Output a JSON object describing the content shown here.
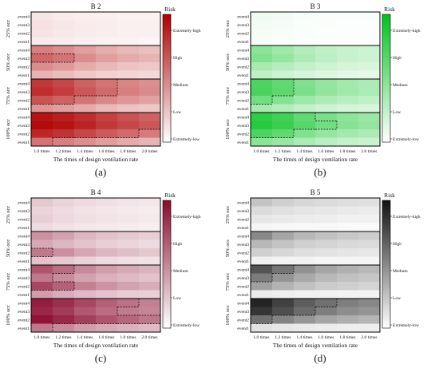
{
  "chart_data": [
    {
      "type": "heatmap",
      "title": "B 2",
      "panel_label": "(a)",
      "color": "#b00000",
      "xlabel": "The times of design ventilation rate",
      "x": [
        "1.0 times",
        "1.2 times",
        "1.4 times",
        "1.6 times",
        "1.8 times",
        "2.0 times"
      ],
      "groups": [
        "25% occ",
        "50% occ",
        "75% occ",
        "100% occ"
      ],
      "rows": [
        "event4",
        "event3",
        "event2",
        "event1"
      ],
      "legend_title": "Risk",
      "legend_labels": [
        "Extremely-high",
        "High",
        "Medium",
        "Low",
        "Extremely-low"
      ],
      "values": [
        [
          [
            0.1,
            0.08,
            0.07,
            0.06,
            0.05,
            0.05
          ],
          [
            0.12,
            0.1,
            0.08,
            0.07,
            0.06,
            0.06
          ],
          [
            0.11,
            0.09,
            0.08,
            0.07,
            0.06,
            0.06
          ],
          [
            0.08,
            0.07,
            0.06,
            0.05,
            0.05,
            0.04
          ]
        ],
        [
          [
            0.5,
            0.45,
            0.38,
            0.32,
            0.28,
            0.25
          ],
          [
            0.6,
            0.55,
            0.45,
            0.38,
            0.33,
            0.3
          ],
          [
            0.45,
            0.4,
            0.33,
            0.28,
            0.24,
            0.22
          ],
          [
            0.3,
            0.26,
            0.22,
            0.18,
            0.16,
            0.15
          ]
        ],
        [
          [
            0.78,
            0.72,
            0.62,
            0.55,
            0.48,
            0.44
          ],
          [
            0.82,
            0.76,
            0.66,
            0.58,
            0.5,
            0.46
          ],
          [
            0.68,
            0.62,
            0.54,
            0.47,
            0.41,
            0.37
          ],
          [
            0.42,
            0.38,
            0.33,
            0.28,
            0.24,
            0.22
          ]
        ],
        [
          [
            0.92,
            0.88,
            0.82,
            0.74,
            0.68,
            0.62
          ],
          [
            0.96,
            0.92,
            0.86,
            0.78,
            0.72,
            0.66
          ],
          [
            0.85,
            0.8,
            0.72,
            0.64,
            0.58,
            0.52
          ],
          [
            0.55,
            0.5,
            0.44,
            0.38,
            0.33,
            0.3
          ]
        ]
      ]
    },
    {
      "type": "heatmap",
      "title": "B 3",
      "panel_label": "(b)",
      "color": "#00c21c",
      "xlabel": "The times of design ventilation rate",
      "x": [
        "1.0 times",
        "1.2 times",
        "1.4 times",
        "1.6 times",
        "1.8 times",
        "2.0 times"
      ],
      "groups": [
        "25% occ",
        "50% occ",
        "75% occ",
        "100% occ"
      ],
      "rows": [
        "event4",
        "event3",
        "event2",
        "event1"
      ],
      "legend_title": "Risk",
      "legend_labels": [
        "Extremely-high",
        "High",
        "Medium",
        "Low",
        "Extremely-low"
      ],
      "values": [
        [
          [
            0.06,
            0.05,
            0.03,
            0.02,
            0.02,
            0.02
          ],
          [
            0.05,
            0.04,
            0.02,
            0.02,
            0.01,
            0.01
          ],
          [
            0.04,
            0.03,
            0.02,
            0.01,
            0.01,
            0.01
          ],
          [
            0.03,
            0.02,
            0.01,
            0.01,
            0.01,
            0.01
          ]
        ],
        [
          [
            0.45,
            0.38,
            0.3,
            0.25,
            0.22,
            0.2
          ],
          [
            0.5,
            0.42,
            0.32,
            0.26,
            0.22,
            0.2
          ],
          [
            0.35,
            0.3,
            0.24,
            0.2,
            0.17,
            0.15
          ],
          [
            0.25,
            0.2,
            0.16,
            0.13,
            0.11,
            0.1
          ]
        ],
        [
          [
            0.7,
            0.62,
            0.5,
            0.42,
            0.36,
            0.32
          ],
          [
            0.72,
            0.64,
            0.52,
            0.43,
            0.37,
            0.33
          ],
          [
            0.55,
            0.48,
            0.38,
            0.32,
            0.28,
            0.25
          ],
          [
            0.35,
            0.3,
            0.24,
            0.2,
            0.17,
            0.15
          ]
        ],
        [
          [
            0.82,
            0.75,
            0.62,
            0.52,
            0.45,
            0.4
          ],
          [
            0.86,
            0.78,
            0.66,
            0.55,
            0.47,
            0.42
          ],
          [
            0.7,
            0.62,
            0.5,
            0.42,
            0.36,
            0.32
          ],
          [
            0.45,
            0.4,
            0.32,
            0.27,
            0.23,
            0.21
          ]
        ]
      ]
    },
    {
      "type": "heatmap",
      "title": "B 4",
      "panel_label": "(c)",
      "color": "#8b0a2e",
      "xlabel": "The times of design ventilation rate",
      "x": [
        "1.0 times",
        "1.2 times",
        "1.4 times",
        "1.6 times",
        "1.8 times",
        "2.0 times"
      ],
      "groups": [
        "25% occ",
        "50% occ",
        "75% occ",
        "100% occ"
      ],
      "rows": [
        "event4",
        "event3",
        "event2",
        "event1"
      ],
      "legend_title": "Risk",
      "legend_labels": [
        "Extremely-high",
        "High",
        "Medium",
        "Low",
        "Extremely-low"
      ],
      "values": [
        [
          [
            0.22,
            0.18,
            0.15,
            0.13,
            0.11,
            0.1
          ],
          [
            0.18,
            0.15,
            0.12,
            0.1,
            0.09,
            0.08
          ],
          [
            0.2,
            0.16,
            0.13,
            0.11,
            0.1,
            0.09
          ],
          [
            0.15,
            0.12,
            0.1,
            0.09,
            0.08,
            0.07
          ]
        ],
        [
          [
            0.45,
            0.38,
            0.3,
            0.25,
            0.22,
            0.2
          ],
          [
            0.35,
            0.3,
            0.24,
            0.2,
            0.17,
            0.15
          ],
          [
            0.55,
            0.46,
            0.36,
            0.3,
            0.26,
            0.23
          ],
          [
            0.25,
            0.22,
            0.18,
            0.15,
            0.13,
            0.12
          ]
        ],
        [
          [
            0.7,
            0.6,
            0.48,
            0.4,
            0.35,
            0.31
          ],
          [
            0.55,
            0.47,
            0.38,
            0.32,
            0.28,
            0.25
          ],
          [
            0.75,
            0.64,
            0.52,
            0.44,
            0.38,
            0.34
          ],
          [
            0.4,
            0.34,
            0.28,
            0.24,
            0.21,
            0.19
          ]
        ],
        [
          [
            0.92,
            0.85,
            0.75,
            0.65,
            0.58,
            0.52
          ],
          [
            0.88,
            0.8,
            0.68,
            0.6,
            0.54,
            0.5
          ],
          [
            0.96,
            0.88,
            0.78,
            0.7,
            0.62,
            0.56
          ],
          [
            0.55,
            0.48,
            0.4,
            0.35,
            0.31,
            0.28
          ]
        ]
      ]
    },
    {
      "type": "heatmap",
      "title": "B 5",
      "panel_label": "(d)",
      "color": "#111111",
      "xlabel": "The times of design ventilation rate",
      "x": [
        "1.0 times",
        "1.2 times",
        "1.4 times",
        "1.6 times",
        "1.8 times",
        "2.0 times"
      ],
      "groups": [
        "25% occ",
        "50% occ",
        "75% occ",
        "100% occ"
      ],
      "rows": [
        "event4",
        "event3",
        "event2",
        "event1"
      ],
      "legend_title": "Risk",
      "legend_labels": [
        "Extremely-high",
        "High",
        "Medium",
        "Low",
        "Extremely-low"
      ],
      "values": [
        [
          [
            0.25,
            0.2,
            0.17,
            0.15,
            0.14,
            0.13
          ],
          [
            0.15,
            0.13,
            0.11,
            0.1,
            0.09,
            0.08
          ],
          [
            0.1,
            0.09,
            0.08,
            0.07,
            0.06,
            0.06
          ],
          [
            0.04,
            0.03,
            0.03,
            0.03,
            0.02,
            0.02
          ]
        ],
        [
          [
            0.5,
            0.38,
            0.3,
            0.26,
            0.23,
            0.21
          ],
          [
            0.3,
            0.25,
            0.2,
            0.18,
            0.16,
            0.15
          ],
          [
            0.2,
            0.17,
            0.14,
            0.12,
            0.11,
            0.1
          ],
          [
            0.06,
            0.05,
            0.05,
            0.04,
            0.04,
            0.04
          ]
        ],
        [
          [
            0.72,
            0.58,
            0.46,
            0.38,
            0.33,
            0.3
          ],
          [
            0.55,
            0.45,
            0.36,
            0.3,
            0.26,
            0.24
          ],
          [
            0.4,
            0.32,
            0.26,
            0.22,
            0.2,
            0.18
          ],
          [
            0.08,
            0.07,
            0.06,
            0.06,
            0.05,
            0.05
          ]
        ],
        [
          [
            0.92,
            0.8,
            0.68,
            0.6,
            0.54,
            0.5
          ],
          [
            0.85,
            0.74,
            0.62,
            0.54,
            0.48,
            0.45
          ],
          [
            0.6,
            0.52,
            0.44,
            0.38,
            0.34,
            0.31
          ],
          [
            0.12,
            0.1,
            0.09,
            0.08,
            0.07,
            0.07
          ]
        ]
      ]
    }
  ]
}
